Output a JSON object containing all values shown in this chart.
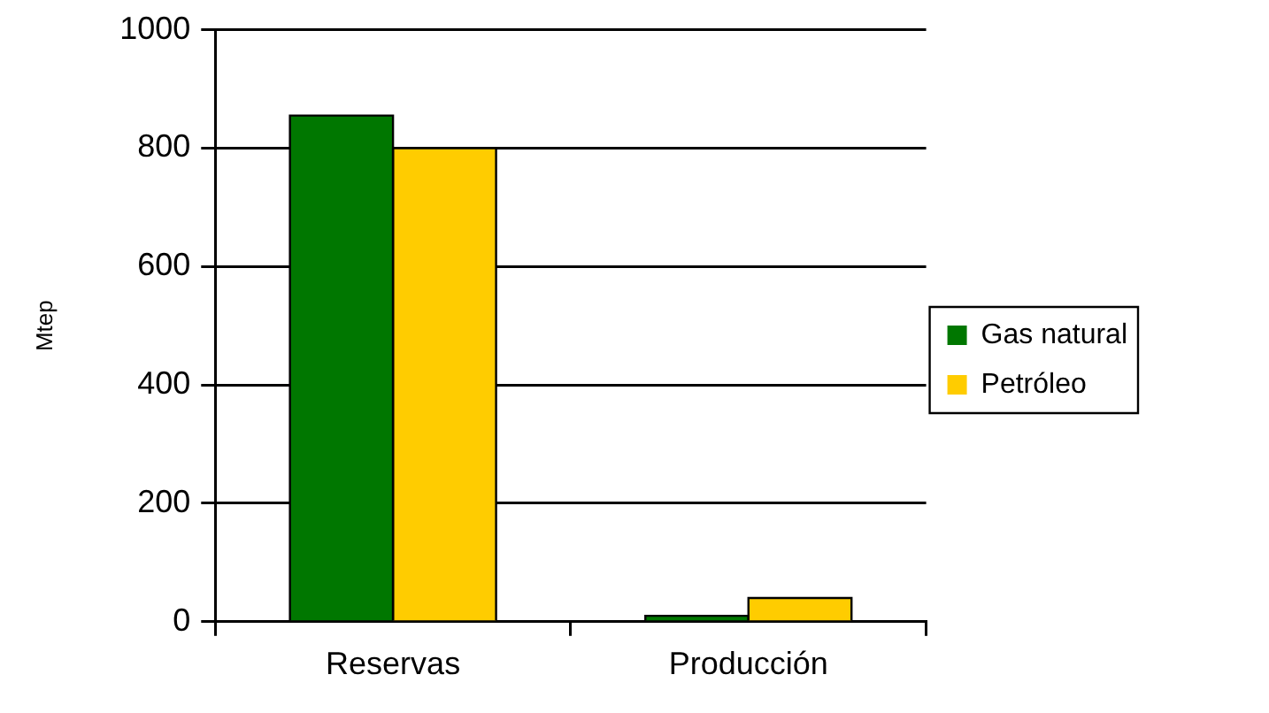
{
  "chart_data": {
    "type": "bar",
    "ylabel": "Mtep",
    "categories": [
      "Reservas",
      "Producción"
    ],
    "series": [
      {
        "name": "Gas natural",
        "color": "#007700",
        "values": [
          855,
          10
        ]
      },
      {
        "name": "Petróleo",
        "color": "#ffcc00",
        "values": [
          800,
          40
        ]
      }
    ],
    "ylim": [
      0,
      1000
    ],
    "yticks": [
      0,
      200,
      400,
      600,
      800,
      1000
    ],
    "grid": "y",
    "legend": "right"
  }
}
